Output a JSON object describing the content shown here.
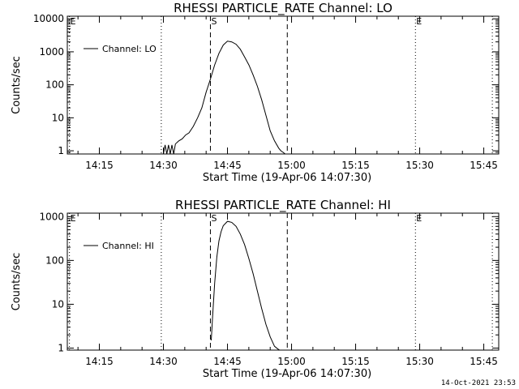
{
  "chart_data": [
    {
      "type": "line",
      "title": "RHESSI PARTICLE_RATE Channel: LO",
      "xlabel": "Start Time (19-Apr-06 14:07:30)",
      "ylabel": "Counts/sec",
      "x_ticks": [
        "14:15",
        "14:30",
        "14:45",
        "15:00",
        "15:15",
        "15:30",
        "15:45"
      ],
      "x_tick_minutes": [
        15,
        30,
        45,
        60,
        75,
        90,
        105
      ],
      "xlim_minutes": [
        7.5,
        108.5
      ],
      "y_scale": "log",
      "ylim": [
        0.8,
        12000
      ],
      "y_ticks": [
        1,
        10,
        100,
        1000,
        10000
      ],
      "y_tick_labels": [
        "1",
        "10",
        "100",
        "1000",
        "10000"
      ],
      "legend": "top-left",
      "series": [
        {
          "name": "Channel: LO",
          "x_minutes": [
            30.0,
            30.4,
            30.8,
            31.2,
            31.6,
            32.0,
            32.4,
            32.8,
            33.2,
            33.6,
            34.4,
            35.2,
            36.0,
            37.0,
            38.0,
            39.0,
            40.0,
            41.0,
            42.0,
            43.0,
            44.0,
            45.0,
            46.0,
            47.0,
            48.0,
            49.0,
            50.0,
            51.0,
            52.0,
            53.0,
            54.0,
            55.0,
            56.0,
            57.0,
            57.5,
            58.0,
            58.5
          ],
          "values": [
            0.8,
            1.5,
            0.8,
            1.5,
            0.8,
            1.5,
            0.8,
            1.6,
            1.8,
            2.0,
            2.3,
            3.0,
            3.5,
            5.5,
            10,
            20,
            60,
            150,
            400,
            900,
            1600,
            2100,
            2000,
            1700,
            1200,
            700,
            400,
            200,
            90,
            35,
            12,
            4,
            2,
            1.2,
            1.0,
            0.9,
            0.8
          ]
        }
      ],
      "markers": [
        {
          "label": "E",
          "minute": 8.0,
          "style": "dotted"
        },
        {
          "label": "",
          "minute": 29.5,
          "style": "dotted"
        },
        {
          "label": "S",
          "minute": 41.0,
          "style": "dashed"
        },
        {
          "label": "",
          "minute": 59.0,
          "style": "dashed"
        },
        {
          "label": "E",
          "minute": 89.0,
          "style": "dotted"
        },
        {
          "label": "",
          "minute": 107.0,
          "style": "dotted"
        }
      ]
    },
    {
      "type": "line",
      "title": "RHESSI PARTICLE_RATE Channel: HI",
      "xlabel": "Start Time (19-Apr-06 14:07:30)",
      "ylabel": "Counts/sec",
      "x_ticks": [
        "14:15",
        "14:30",
        "14:45",
        "15:00",
        "15:15",
        "15:30",
        "15:45"
      ],
      "x_tick_minutes": [
        15,
        30,
        45,
        60,
        75,
        90,
        105
      ],
      "xlim_minutes": [
        7.5,
        108.5
      ],
      "y_scale": "log",
      "ylim": [
        0.9,
        1200
      ],
      "y_ticks": [
        1,
        10,
        100,
        1000
      ],
      "y_tick_labels": [
        "1",
        "10",
        "100",
        "1000"
      ],
      "legend": "top-left",
      "series": [
        {
          "name": "Channel: HI",
          "x_minutes": [
            41.2,
            41.5,
            42.0,
            42.5,
            43.0,
            43.5,
            44.0,
            45.0,
            46.0,
            47.0,
            48.0,
            49.0,
            50.0,
            51.0,
            52.0,
            53.0,
            54.0,
            55.0,
            56.0,
            56.8,
            57.2
          ],
          "values": [
            1.5,
            5,
            30,
            120,
            280,
            450,
            620,
            780,
            740,
            600,
            400,
            230,
            110,
            50,
            20,
            8,
            3.5,
            1.8,
            1.1,
            0.95,
            0.9
          ]
        }
      ],
      "markers": [
        {
          "label": "E",
          "minute": 8.0,
          "style": "dotted"
        },
        {
          "label": "",
          "minute": 29.5,
          "style": "dotted"
        },
        {
          "label": "S",
          "minute": 41.0,
          "style": "dashed"
        },
        {
          "label": "",
          "minute": 59.0,
          "style": "dashed"
        },
        {
          "label": "E",
          "minute": 89.0,
          "style": "dotted"
        },
        {
          "label": "",
          "minute": 107.0,
          "style": "dotted"
        }
      ]
    }
  ],
  "footer": {
    "timestamp": "14-Oct-2021 23:53"
  }
}
